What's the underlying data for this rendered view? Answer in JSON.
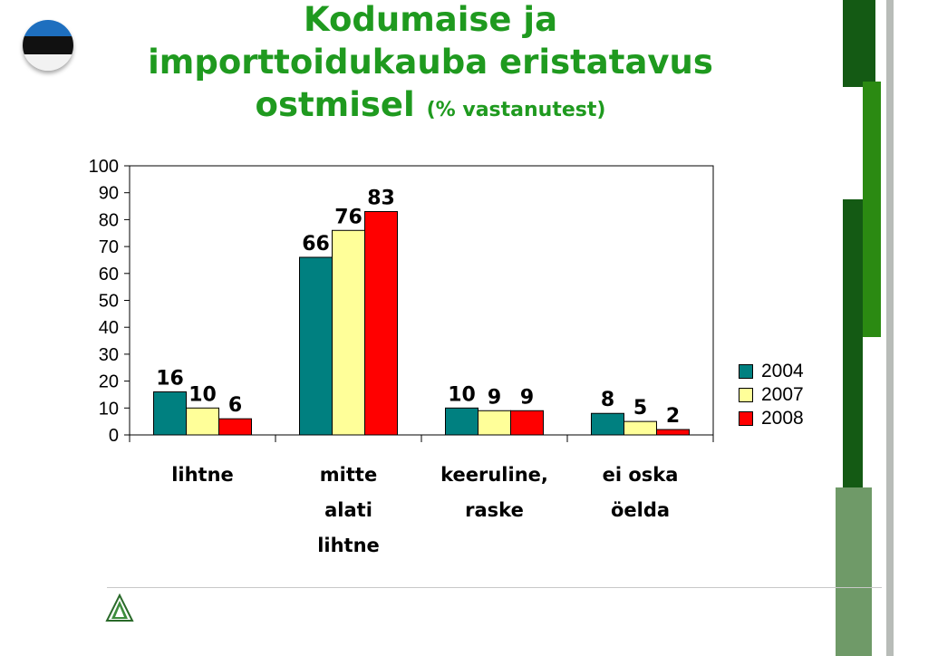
{
  "title": {
    "line1": "Kodumaise ja",
    "line2": "importtoidukauba eristatavus",
    "line3": "ostmisel",
    "suffix": "(% vastanutest)"
  },
  "chart_data": {
    "type": "bar",
    "title": "Kodumaise ja importtoidukauba eristatavus ostmisel (% vastanutest)",
    "categories": [
      "lihtne",
      "mitte alati lihtne",
      "keeruline, raske",
      "ei oska öelda"
    ],
    "category_lines": [
      [
        "lihtne"
      ],
      [
        "mitte",
        "alati",
        "lihtne"
      ],
      [
        "keeruline,",
        "raske"
      ],
      [
        "ei oska",
        "öelda"
      ]
    ],
    "series": [
      {
        "name": "2004",
        "values": [
          16,
          66,
          10,
          8
        ],
        "color": "#008080"
      },
      {
        "name": "2007",
        "values": [
          10,
          76,
          9,
          5
        ],
        "color": "#ffff99"
      },
      {
        "name": "2008",
        "values": [
          6,
          83,
          9,
          2
        ],
        "color": "#ff0000"
      }
    ],
    "ylim": [
      0,
      100
    ],
    "yticks": [
      0,
      10,
      20,
      30,
      40,
      50,
      60,
      70,
      80,
      90,
      100
    ],
    "grid": false,
    "legend_position": "right"
  },
  "colors": {
    "title": "#1f9a1f",
    "deco_dark_green": "#145a14",
    "deco_mid_green": "#2b8a12",
    "deco_sage": "#6f9a68"
  }
}
